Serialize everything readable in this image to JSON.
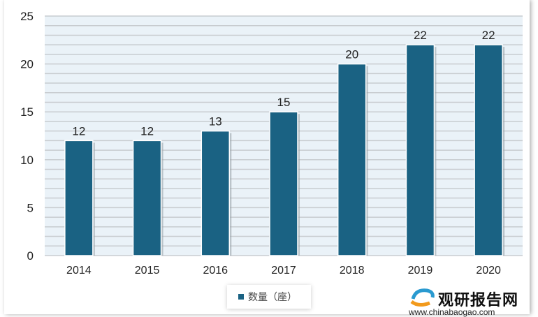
{
  "chart_data": {
    "type": "bar",
    "categories": [
      "2014",
      "2015",
      "2016",
      "2017",
      "2018",
      "2019",
      "2020"
    ],
    "series": [
      {
        "name": "数量（座）",
        "values": [
          12,
          12,
          13,
          15,
          20,
          22,
          22
        ]
      }
    ],
    "ylim": [
      0,
      25
    ],
    "yticks": [
      "0",
      "5",
      "10",
      "15",
      "20",
      "25"
    ],
    "grid": true,
    "legend": "bottom",
    "colors": {
      "bar": "#1a6283",
      "plot_bg": "#eaf2f8",
      "grid": "#c8ccd0"
    }
  },
  "watermark": {
    "name": "观研报告网",
    "url": "www.chinabaogao.com"
  }
}
